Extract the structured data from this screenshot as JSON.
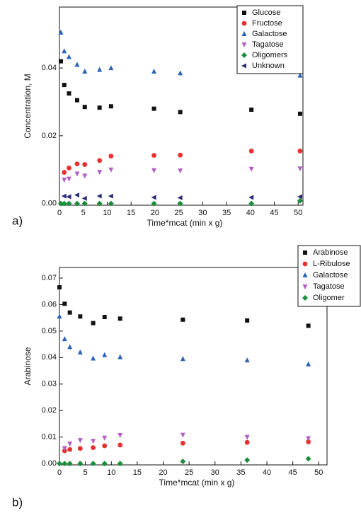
{
  "chart_data": [
    {
      "type": "scatter",
      "panel_label": "a)",
      "x_label": "Time*mcat (min x g)",
      "y_label": "Concentration, M",
      "x": [
        0.3,
        1,
        2,
        3.7,
        5.3,
        8.4,
        10.8,
        19.8,
        25.3,
        40.2,
        50.4
      ],
      "xlim": [
        0,
        51
      ],
      "ylim": [
        -0.0005,
        0.058
      ],
      "xticks": [
        0,
        5,
        10,
        15,
        20,
        25,
        30,
        35,
        40,
        45,
        50
      ],
      "yticks": [
        {
          "value": 0,
          "label": "0.00"
        },
        {
          "value": 0.02,
          "label": "0.02"
        },
        {
          "value": 0.04,
          "label": "0.04"
        }
      ],
      "legend": "top-right",
      "series": [
        {
          "name": "Glucose",
          "color": "#111111",
          "marker": "square",
          "values": [
            0.042,
            0.035,
            0.0325,
            0.0305,
            0.0285,
            0.0283,
            0.0287,
            0.028,
            0.027,
            0.0277,
            0.0265
          ]
        },
        {
          "name": "Fructose",
          "color": "#e8312f",
          "marker": "circle",
          "values": [
            null,
            0.0092,
            0.0105,
            0.0117,
            0.0115,
            0.0127,
            0.014,
            0.0142,
            0.0143,
            0.0155,
            0.0155
          ]
        },
        {
          "name": "Galactose",
          "color": "#2a62b7",
          "marker": "triangle-up",
          "values": [
            0.0505,
            0.045,
            0.0433,
            0.041,
            0.039,
            0.0395,
            0.04,
            0.039,
            0.0385,
            0.039,
            0.0378
          ]
        },
        {
          "name": "Tagatose",
          "color": "#b25fc3",
          "marker": "triangle-down",
          "values": [
            null,
            0.007,
            0.0073,
            0.0088,
            0.0082,
            0.0093,
            0.01,
            0.0098,
            0.0097,
            0.0102,
            0.0103
          ]
        },
        {
          "name": "Oligomers",
          "color": "#1a8f3c",
          "marker": "diamond",
          "values": [
            0,
            0,
            0,
            0,
            0,
            0,
            0,
            0,
            0,
            0,
            0.0008
          ]
        },
        {
          "name": "Unknown",
          "color": "#2a2a7a",
          "marker": "triangle-left",
          "values": [
            null,
            0.0022,
            0.002,
            0.0025,
            0.0015,
            0.0022,
            0.0022,
            0.0018,
            0.0017,
            0.0018,
            0.002
          ]
        }
      ]
    },
    {
      "type": "scatter",
      "panel_label": "b)",
      "x_label": "Time*mcat (min x g)",
      "y_label": "Arabinose",
      "x": [
        0,
        1,
        2,
        4,
        6.5,
        8.7,
        11.7,
        23.8,
        36.2,
        48
      ],
      "xlim": [
        0,
        51.6
      ],
      "ylim": [
        -0.0005,
        0.074
      ],
      "xticks": [
        0,
        5,
        10,
        15,
        20,
        25,
        30,
        35,
        40,
        45,
        50
      ],
      "yticks": [
        {
          "value": 0,
          "label": "0.00"
        },
        {
          "value": 0.01,
          "label": "0.01"
        },
        {
          "value": 0.02,
          "label": "0.02"
        },
        {
          "value": 0.03,
          "label": "0.03"
        },
        {
          "value": 0.04,
          "label": "0.04"
        },
        {
          "value": 0.05,
          "label": "0.05"
        },
        {
          "value": 0.06,
          "label": "0.06"
        },
        {
          "value": 0.07,
          "label": "0.07"
        }
      ],
      "legend": "top-right",
      "series": [
        {
          "name": "Arabinose",
          "color": "#111111",
          "marker": "square",
          "values": [
            0.0665,
            0.0603,
            0.057,
            0.0555,
            0.053,
            0.0553,
            0.0547,
            0.0543,
            0.054,
            0.052
          ]
        },
        {
          "name": "L-Ribulose",
          "color": "#e8312f",
          "marker": "circle",
          "values": [
            null,
            0.0048,
            0.0053,
            0.0057,
            0.006,
            0.0067,
            0.007,
            0.0077,
            0.008,
            0.0082
          ]
        },
        {
          "name": "Galactose",
          "color": "#2a62b7",
          "marker": "triangle-up",
          "values": [
            0.0555,
            0.047,
            0.044,
            0.042,
            0.0397,
            0.041,
            0.0402,
            0.0395,
            0.039,
            0.0375
          ]
        },
        {
          "name": "Tagatose",
          "color": "#b25fc3",
          "marker": "triangle-down",
          "values": [
            null,
            0.0058,
            0.0075,
            0.0088,
            0.0085,
            0.0097,
            0.0107,
            0.0108,
            0.01,
            0.0095
          ]
        },
        {
          "name": "Oligomer",
          "color": "#1a8f3c",
          "marker": "diamond",
          "values": [
            0,
            0,
            0,
            0,
            0,
            0,
            0,
            0.0008,
            0.0013,
            0.0018
          ]
        }
      ]
    }
  ]
}
